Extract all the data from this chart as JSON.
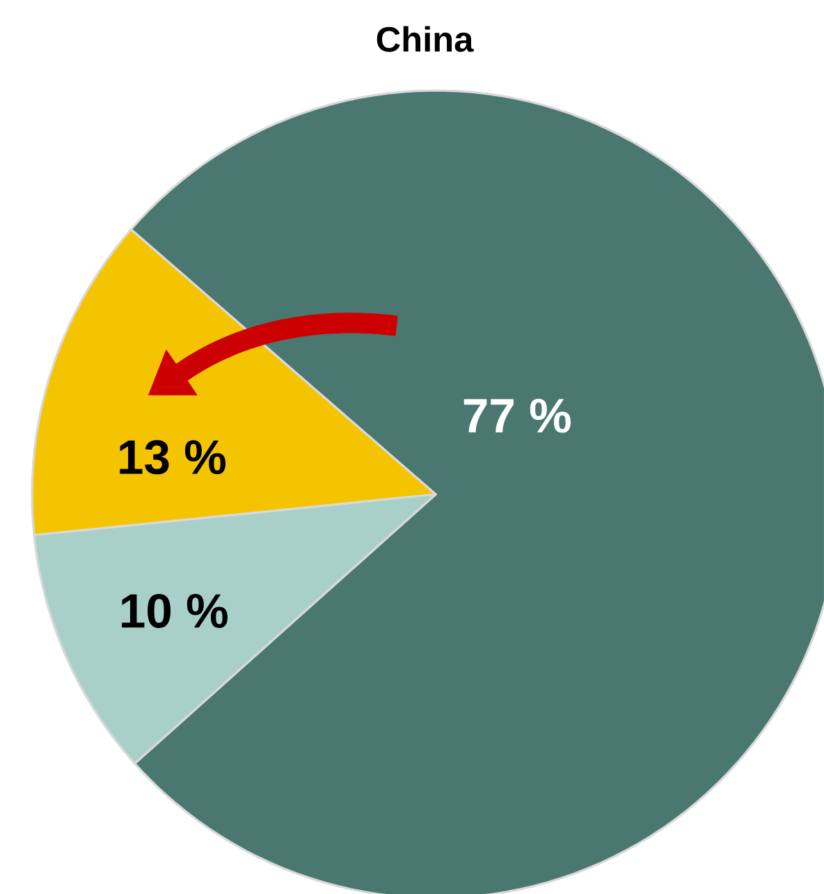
{
  "chart_data": {
    "type": "pie",
    "title": "China",
    "categories": [
      null,
      null,
      null
    ],
    "values": [
      77,
      13,
      10
    ],
    "colors": [
      "#4a7870",
      "#f5c400",
      "#a8d0c8"
    ],
    "value_labels": [
      "77 %",
      "13 %",
      "10 %"
    ]
  }
}
